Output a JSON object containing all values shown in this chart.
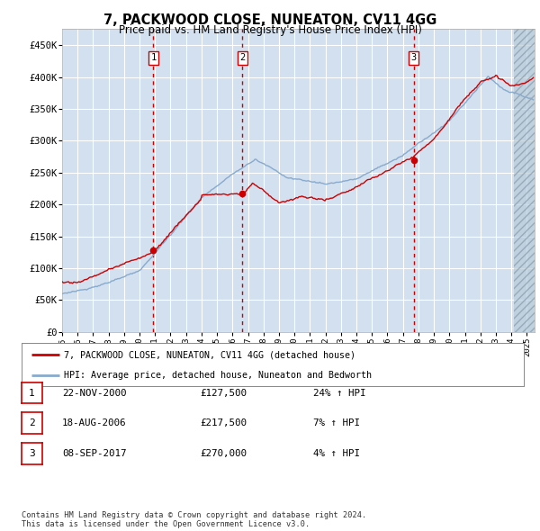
{
  "title": "7, PACKWOOD CLOSE, NUNEATON, CV11 4GG",
  "subtitle": "Price paid vs. HM Land Registry's House Price Index (HPI)",
  "ylabel_ticks": [
    "£0",
    "£50K",
    "£100K",
    "£150K",
    "£200K",
    "£250K",
    "£300K",
    "£350K",
    "£400K",
    "£450K"
  ],
  "ytick_values": [
    0,
    50000,
    100000,
    150000,
    200000,
    250000,
    300000,
    350000,
    400000,
    450000
  ],
  "ylim": [
    0,
    475000
  ],
  "xlim_start": 1995.0,
  "xlim_end": 2025.5,
  "sale_years_float": [
    2000.896,
    2006.633,
    2017.692
  ],
  "sale_prices": [
    127500,
    217500,
    270000
  ],
  "sale_labels": [
    "1",
    "2",
    "3"
  ],
  "vline_color": "#cc0000",
  "sale_marker_color": "#cc0000",
  "hpi_line_color": "#88aacc",
  "price_line_color": "#cc0000",
  "legend_label_price": "7, PACKWOOD CLOSE, NUNEATON, CV11 4GG (detached house)",
  "legend_label_hpi": "HPI: Average price, detached house, Nuneaton and Bedworth",
  "table_data": [
    [
      "1",
      "22-NOV-2000",
      "£127,500",
      "24% ↑ HPI"
    ],
    [
      "2",
      "18-AUG-2006",
      "£217,500",
      "7% ↑ HPI"
    ],
    [
      "3",
      "08-SEP-2017",
      "£270,000",
      "4% ↑ HPI"
    ]
  ],
  "footnote": "Contains HM Land Registry data © Crown copyright and database right 2024.\nThis data is licensed under the Open Government Licence v3.0.",
  "background_color": "#ffffff",
  "plot_bg_color": "#dce8f5",
  "shade_bg_color": "#c8d8ea",
  "grid_color": "#ffffff"
}
